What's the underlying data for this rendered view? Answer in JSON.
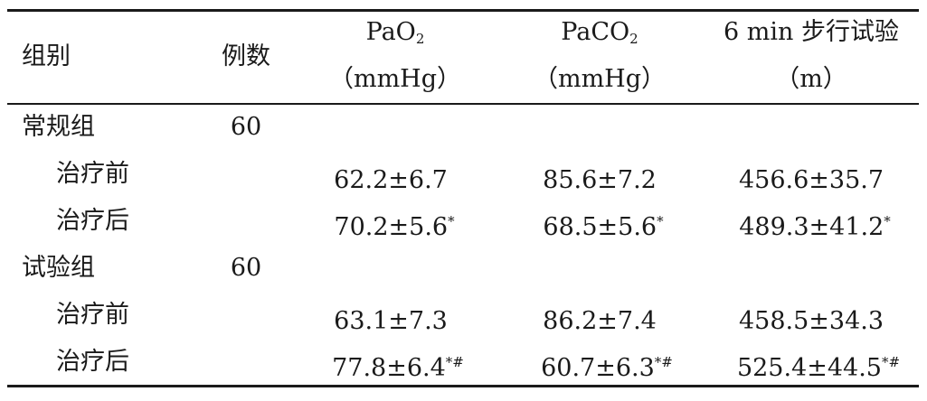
{
  "header": {
    "group": "组别",
    "count": "例数",
    "pao2_main": "PaO",
    "pao2_sub": "2",
    "pao2_unit": "（mmHg）",
    "paco2_main": "PaCO",
    "paco2_sub": "2",
    "paco2_unit": "（mmHg）",
    "walk_title": "6 min 步行试验",
    "walk_unit": "（m）"
  },
  "rows": [
    {
      "label": "常规组",
      "count": "60",
      "pao2": "",
      "pao2_mark": "",
      "paco2": "",
      "paco2_mark": "",
      "walk": "",
      "walk_mark": ""
    },
    {
      "label": "治疗前",
      "count": "",
      "pao2": "62.2±6.7",
      "pao2_mark": "",
      "paco2": "85.6±7.2",
      "paco2_mark": "",
      "walk": "456.6±35.7",
      "walk_mark": ""
    },
    {
      "label": "治疗后",
      "count": "",
      "pao2": "70.2±5.6",
      "pao2_mark": "*",
      "paco2": "68.5±5.6",
      "paco2_mark": "*",
      "walk": "489.3±41.2",
      "walk_mark": "*"
    },
    {
      "label": "试验组",
      "count": "60",
      "pao2": "",
      "pao2_mark": "",
      "paco2": "",
      "paco2_mark": "",
      "walk": "",
      "walk_mark": ""
    },
    {
      "label": "治疗前",
      "count": "",
      "pao2": "63.1±7.3",
      "pao2_mark": "",
      "paco2": "86.2±7.4",
      "paco2_mark": "",
      "walk": "458.5±34.3",
      "walk_mark": ""
    },
    {
      "label": "治疗后",
      "count": "",
      "pao2": "77.8±6.4",
      "pao2_mark": "*#",
      "paco2": "60.7±6.3",
      "paco2_mark": "*#",
      "walk": "525.4±44.5",
      "walk_mark": "*#"
    }
  ]
}
